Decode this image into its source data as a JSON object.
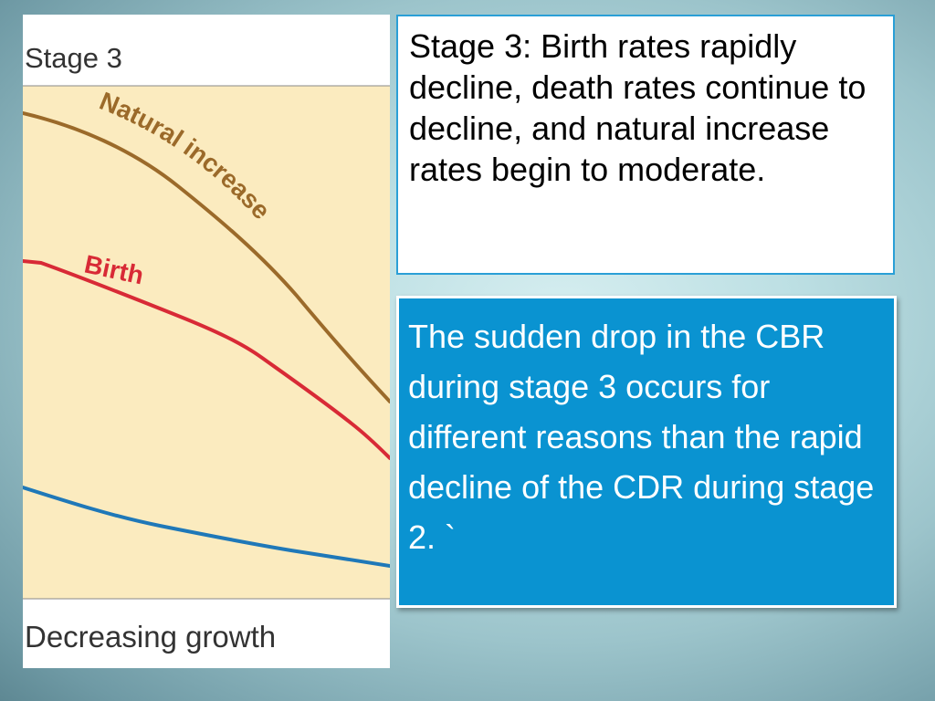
{
  "figure": {
    "heading": "Stage 3",
    "footer": "Decreasing growth",
    "natural_label": "Natural increase",
    "birth_label": "Birth",
    "colors": {
      "plot_bg": "#fbebbf",
      "natural": "#9b6a2a",
      "birth": "#d82a36",
      "death": "#1f78b8"
    }
  },
  "top_box": {
    "text": "Stage 3: Birth rates rapidly decline, death rates continue to decline, and natural increase rates begin to moderate."
  },
  "bottom_box": {
    "text": "The sudden drop in the CBR during stage 3 occurs for different reasons than the rapid decline of the CDR during stage 2. `"
  }
}
